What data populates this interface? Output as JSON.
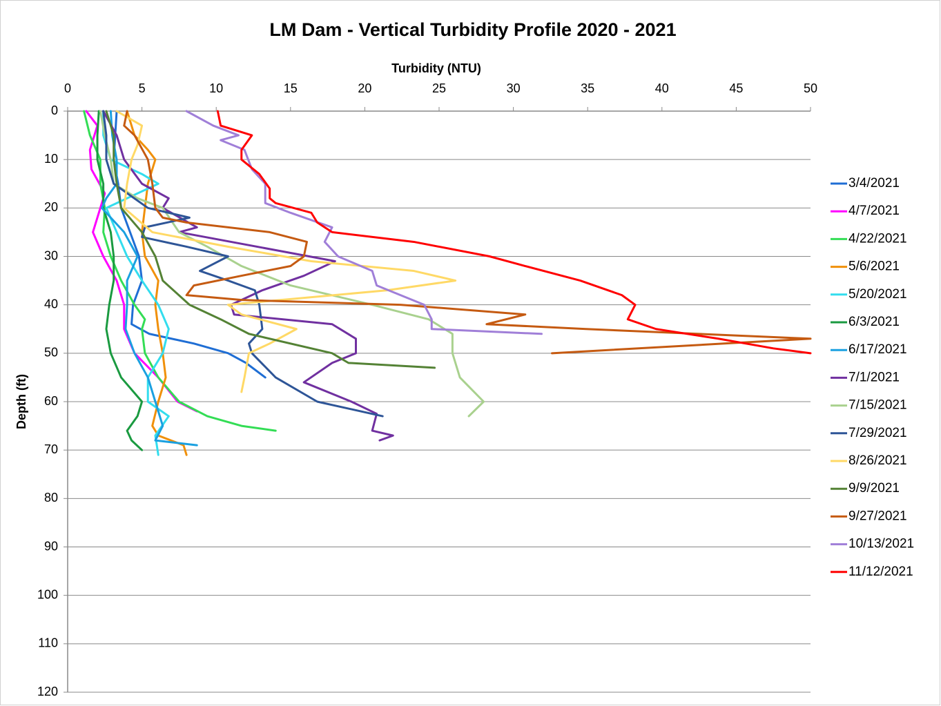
{
  "chart_data": {
    "type": "line",
    "title": "LM Dam - Vertical Turbidity Profile 2020 - 2021",
    "x_label": "Turbidity (NTU)",
    "y_label": "Depth (ft)",
    "xlim": [
      0,
      50
    ],
    "xticks": [
      0,
      5,
      10,
      15,
      20,
      25,
      30,
      35,
      40,
      45,
      50
    ],
    "ylim": [
      0,
      120
    ],
    "yticks": [
      0,
      10,
      20,
      30,
      40,
      50,
      60,
      70,
      80,
      90,
      100,
      110,
      120
    ],
    "y_reversed": true,
    "x_axis_position": "top",
    "grid": true,
    "legend": "right",
    "series": [
      {
        "name": "3/4/2021",
        "color": "#1f6ed4",
        "x": [
          3.3,
          3.2,
          3.1,
          3.4,
          3.6,
          4.2,
          4.8,
          5.0,
          4.4,
          4.3,
          5.5,
          8.5,
          10.8,
          12.0,
          13.3
        ],
        "y": [
          0,
          5,
          10,
          15,
          20,
          25,
          30,
          35,
          40,
          44,
          46,
          48,
          50,
          52,
          55
        ]
      },
      {
        "name": "4/7/2021",
        "color": "#ff00ff",
        "x": [
          1.25,
          2.0,
          1.5,
          1.6,
          2.5,
          2.2,
          1.7,
          2.4,
          3.3,
          3.8,
          3.8,
          4.5,
          6.1,
          7.4,
          8.7
        ],
        "y": [
          0,
          3,
          8,
          12,
          17,
          20,
          25,
          30,
          35,
          40,
          45,
          50,
          55,
          60,
          62
        ]
      },
      {
        "name": "4/22/2021",
        "color": "#33dd55",
        "x": [
          1.1,
          1.5,
          2.2,
          2.2,
          2.5,
          2.4,
          2.9,
          3.6,
          4.5,
          5.2,
          5.0,
          5.2,
          6.1,
          7.5,
          9.4,
          11.7,
          14.0
        ],
        "y": [
          0,
          5,
          10,
          15,
          20,
          25,
          30,
          35,
          40,
          43,
          45,
          50,
          55,
          60,
          63,
          65,
          66
        ]
      },
      {
        "name": "5/6/2021",
        "color": "#f0900a",
        "x": [
          4.0,
          4.5,
          5.4,
          5.9,
          5.4,
          5.2,
          5.0,
          5.2,
          6.1,
          5.9,
          6.1,
          6.4,
          6.6,
          6.1,
          5.7,
          6.1,
          7.8,
          8.0
        ],
        "y": [
          0,
          5,
          8,
          10,
          15,
          20,
          25,
          30,
          35,
          40,
          45,
          50,
          55,
          60,
          65,
          67,
          69,
          71
        ]
      },
      {
        "name": "5/20/2021",
        "color": "#33ddee",
        "x": [
          2.4,
          2.4,
          2.9,
          5.0,
          6.1,
          4.7,
          2.6,
          3.3,
          4.0,
          5.0,
          6.1,
          6.8,
          6.4,
          5.4,
          5.4,
          6.8,
          5.9,
          6.1
        ],
        "y": [
          0,
          5,
          10,
          13,
          15,
          17,
          20,
          25,
          30,
          35,
          40,
          45,
          50,
          55,
          60,
          63,
          67,
          71
        ]
      },
      {
        "name": "6/3/2021",
        "color": "#1a9a40",
        "x": [
          2.1,
          2.0,
          2.0,
          2.4,
          2.4,
          2.9,
          3.1,
          3.1,
          2.8,
          2.6,
          2.9,
          3.6,
          5.0,
          4.7,
          4.0,
          4.3,
          5.0
        ],
        "y": [
          0,
          5,
          10,
          15,
          20,
          25,
          30,
          35,
          40,
          45,
          50,
          55,
          60,
          63,
          66,
          68,
          70
        ]
      },
      {
        "name": "6/17/2021",
        "color": "#1aa0e0",
        "x": [
          2.9,
          3.0,
          3.3,
          3.3,
          2.6,
          2.3,
          3.8,
          4.7,
          4.0,
          4.0,
          3.9,
          4.5,
          5.4,
          5.9,
          6.4,
          5.9,
          8.7
        ],
        "y": [
          0,
          5,
          10,
          15,
          18,
          20,
          25,
          30,
          35,
          40,
          45,
          50,
          55,
          60,
          65,
          68,
          69
        ]
      },
      {
        "name": "7/1/2021",
        "color": "#7030a0",
        "x": [
          2.4,
          3.3,
          3.8,
          5.0,
          6.8,
          6.4,
          8.7,
          7.5,
          18.0,
          15.9,
          13.1,
          11.0,
          11.2,
          17.8,
          19.4,
          19.4,
          17.8,
          15.9,
          19.1,
          20.8,
          20.5,
          21.9,
          21.0
        ],
        "y": [
          0,
          5,
          10,
          15,
          18,
          20,
          24,
          25,
          31,
          34,
          37,
          40,
          42,
          44,
          47,
          50,
          52,
          56,
          60,
          62.5,
          66,
          67,
          68
        ]
      },
      {
        "name": "7/15/2021",
        "color": "#a9d18e",
        "x": [
          2.2,
          2.5,
          2.9,
          3.1,
          4.7,
          6.4,
          7.5,
          9.4,
          11.7,
          15.0,
          20.5,
          24.3,
          25.9,
          25.9,
          26.4,
          28.0,
          27.0
        ],
        "y": [
          0,
          5,
          10,
          15,
          18,
          20,
          25,
          28,
          32,
          36,
          40,
          43,
          46,
          50,
          55,
          60,
          63
        ]
      },
      {
        "name": "7/29/2021",
        "color": "#2e5597",
        "x": [
          2.4,
          2.6,
          2.6,
          3.1,
          5.4,
          8.2,
          5.2,
          5.0,
          8.0,
          10.8,
          8.9,
          10.8,
          12.6,
          12.9,
          13.1,
          12.2,
          12.4,
          14.0,
          16.8,
          21.2
        ],
        "y": [
          0,
          5,
          10,
          15,
          20,
          22,
          24,
          26,
          28,
          30,
          33,
          35,
          37,
          40,
          45,
          48,
          50,
          55,
          60,
          63
        ]
      },
      {
        "name": "8/26/2021",
        "color": "#ffd966",
        "x": [
          3.3,
          5.0,
          4.7,
          4.3,
          4.0,
          3.8,
          5.7,
          10.8,
          16.4,
          23.3,
          26.1,
          21.5,
          10.8,
          11.7,
          15.4,
          13.6,
          12.2,
          11.9,
          11.7
        ],
        "y": [
          0,
          3,
          7,
          10,
          15,
          20,
          25,
          28,
          31,
          33,
          35,
          37,
          40,
          42,
          45,
          48,
          50,
          55,
          58
        ]
      },
      {
        "name": "9/9/2021",
        "color": "#548235",
        "x": [
          2.6,
          3.1,
          3.1,
          3.3,
          3.6,
          5.0,
          5.9,
          6.4,
          8.2,
          10.3,
          12.2,
          17.8,
          18.9,
          24.7
        ],
        "y": [
          0,
          5,
          10,
          15,
          20,
          25,
          30,
          35,
          40,
          43,
          46,
          50,
          52,
          53
        ]
      },
      {
        "name": "9/27/2021",
        "color": "#c55a11",
        "x": [
          4.0,
          3.8,
          4.5,
          5.4,
          5.7,
          5.9,
          6.4,
          8.0,
          13.6,
          16.1,
          15.9,
          15.0,
          11.7,
          8.5,
          8.0,
          11.7,
          22.4,
          30.8,
          28.2,
          34.9,
          50.0,
          44.2,
          32.6
        ],
        "y": [
          0,
          3,
          5,
          10,
          15,
          20,
          22,
          23,
          25,
          27,
          30,
          32,
          34,
          36,
          38,
          39,
          40,
          42,
          44,
          45,
          47,
          48,
          50
        ]
      },
      {
        "name": "10/13/2021",
        "color": "#a07fd8",
        "x": [
          8.0,
          9.8,
          11.5,
          10.3,
          11.9,
          12.4,
          13.3,
          13.3,
          15.0,
          17.8,
          17.3,
          18.2,
          20.5,
          20.8,
          24.0,
          24.5,
          24.5,
          31.9
        ],
        "y": [
          0,
          3,
          5,
          6,
          8,
          12,
          15,
          19,
          21,
          24,
          27,
          30,
          33,
          36,
          40,
          43,
          45,
          46
        ]
      },
      {
        "name": "11/12/2021",
        "color": "#ff0000",
        "x": [
          10.1,
          10.3,
          12.4,
          11.7,
          11.7,
          12.9,
          13.6,
          13.6,
          14.0,
          16.4,
          16.8,
          17.8,
          23.3,
          28.4,
          30.8,
          34.5,
          37.3,
          38.2,
          37.7,
          39.6,
          43.8,
          47.5,
          50.0
        ],
        "y": [
          0,
          3,
          5,
          8,
          10,
          13,
          16,
          18,
          19,
          21,
          23,
          25,
          27,
          30,
          32,
          35,
          38,
          40,
          43,
          45,
          47,
          49,
          50
        ]
      }
    ]
  }
}
